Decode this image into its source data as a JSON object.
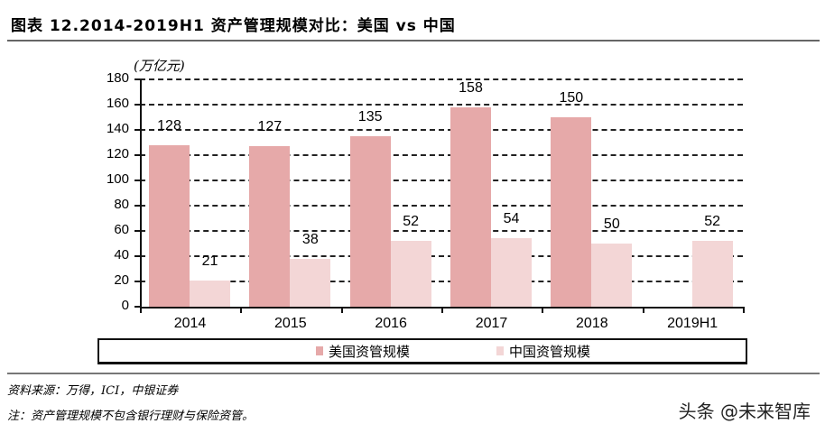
{
  "header": {
    "title": "图表 12.2014-2019H1 资产管理规模对比：美国 vs 中国"
  },
  "footer": {
    "source": "资料来源：万得，ICI，中银证券",
    "note": "注：资产管理规模不包含银行理财与保险资管。",
    "watermark": "头条 @未来智库"
  },
  "colors": {
    "us": "#e6a9a9",
    "cn": "#f3d6d6"
  },
  "chart_data": {
    "type": "bar",
    "title": "2014-2019H1 资产管理规模对比：美国 vs 中国",
    "ylabel": "(万亿元)",
    "xlabel": "",
    "unit_label": "(万亿元)",
    "categories": [
      "2014",
      "2015",
      "2016",
      "2017",
      "2018",
      "2019H1"
    ],
    "series": [
      {
        "name": "美国资管规模",
        "values": [
          128,
          127,
          135,
          158,
          150,
          null
        ],
        "labels": [
          "128",
          "127",
          "135",
          "158",
          "150",
          ""
        ]
      },
      {
        "name": "中国资管规模",
        "values": [
          21,
          38,
          52,
          54,
          50,
          52
        ],
        "labels": [
          "21",
          "38",
          "52",
          "54",
          "50",
          "52"
        ]
      }
    ],
    "yticks": [
      "0",
      "20",
      "40",
      "60",
      "80",
      "100",
      "120",
      "140",
      "160",
      "180"
    ],
    "ylim": [
      0,
      180
    ],
    "grid": true,
    "grid_style": "dashed",
    "legend_position": "bottom",
    "legend": [
      "美国资管规模",
      "中国资管规模"
    ]
  }
}
